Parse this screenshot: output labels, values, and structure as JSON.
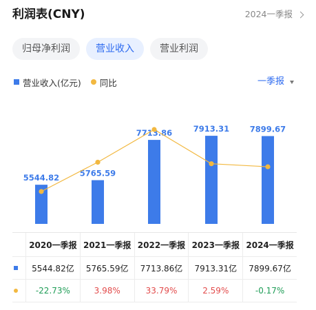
{
  "header": {
    "title": "利润表(CNY)",
    "period_link": "2024一季报"
  },
  "tabs": [
    {
      "label": "归母净利润",
      "active": false
    },
    {
      "label": "营业收入",
      "active": true
    },
    {
      "label": "营业利润",
      "active": false
    }
  ],
  "legend": {
    "bar_label": "营业收入(亿元)",
    "line_label": "同比"
  },
  "period_select": "一季报",
  "colors": {
    "bar": "#3d7be9",
    "line": "#f2b840",
    "negative": "#1f9d57",
    "positive": "#e24b4b",
    "accent": "#2e6bf0"
  },
  "chart_data": {
    "type": "bar",
    "categories": [
      "2020一季报",
      "2021一季报",
      "2022一季报",
      "2023一季报",
      "2024一季报"
    ],
    "series": [
      {
        "name": "营业收入(亿元)",
        "type": "bar",
        "values": [
          5544.82,
          5765.59,
          7713.86,
          7913.31,
          7899.67
        ],
        "labels": [
          "5544.82",
          "5765.59",
          "7713.86",
          "7913.31",
          "7899.67"
        ]
      },
      {
        "name": "同比",
        "type": "line",
        "values": [
          -22.73,
          3.98,
          33.79,
          2.59,
          -0.17
        ]
      }
    ],
    "legend_position": "top-left"
  },
  "table": {
    "headers": [
      "2020一季报",
      "2021一季报",
      "2022一季报",
      "2023一季报",
      "2024一季报"
    ],
    "revenue": [
      "5544.82亿",
      "5765.59亿",
      "7713.86亿",
      "7913.31亿",
      "7899.67亿"
    ],
    "yoy": [
      "-22.73%",
      "3.98%",
      "33.79%",
      "2.59%",
      "-0.17%"
    ]
  }
}
